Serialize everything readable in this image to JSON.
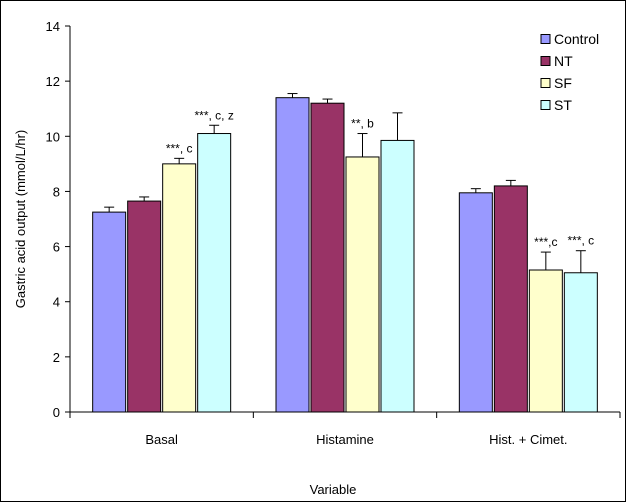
{
  "chart_data": {
    "type": "bar",
    "title": "",
    "xlabel": "Variable",
    "ylabel": "Gastric acid output (mmol/L/hr)",
    "ylim": [
      0,
      14
    ],
    "yticks": [
      0,
      2,
      4,
      6,
      8,
      10,
      12,
      14
    ],
    "categories": [
      "Basal",
      "Histamine",
      "Hist. + Cimet."
    ],
    "legend_position": "top-right",
    "grid": false,
    "series": [
      {
        "name": "Control",
        "color": "#9999FF",
        "values": [
          7.25,
          11.4,
          7.95
        ],
        "errors": [
          0.18,
          0.15,
          0.15
        ]
      },
      {
        "name": "NT",
        "color": "#993366",
        "values": [
          7.65,
          11.2,
          8.2
        ],
        "errors": [
          0.15,
          0.15,
          0.2
        ]
      },
      {
        "name": "SF",
        "color": "#FFFFCC",
        "values": [
          9.0,
          9.25,
          5.15
        ],
        "errors": [
          0.2,
          0.85,
          0.65
        ]
      },
      {
        "name": "ST",
        "color": "#CCFFFF",
        "values": [
          10.1,
          9.85,
          5.05
        ],
        "errors": [
          0.3,
          1.0,
          0.8
        ]
      }
    ],
    "annotations": [
      {
        "category": 0,
        "series": 2,
        "text": "***, c"
      },
      {
        "category": 0,
        "series": 3,
        "text": "***, c, z"
      },
      {
        "category": 1,
        "series": 2,
        "text": "**, b"
      },
      {
        "category": 2,
        "series": 2,
        "text": "***,c"
      },
      {
        "category": 2,
        "series": 3,
        "text": "***, c"
      }
    ]
  }
}
